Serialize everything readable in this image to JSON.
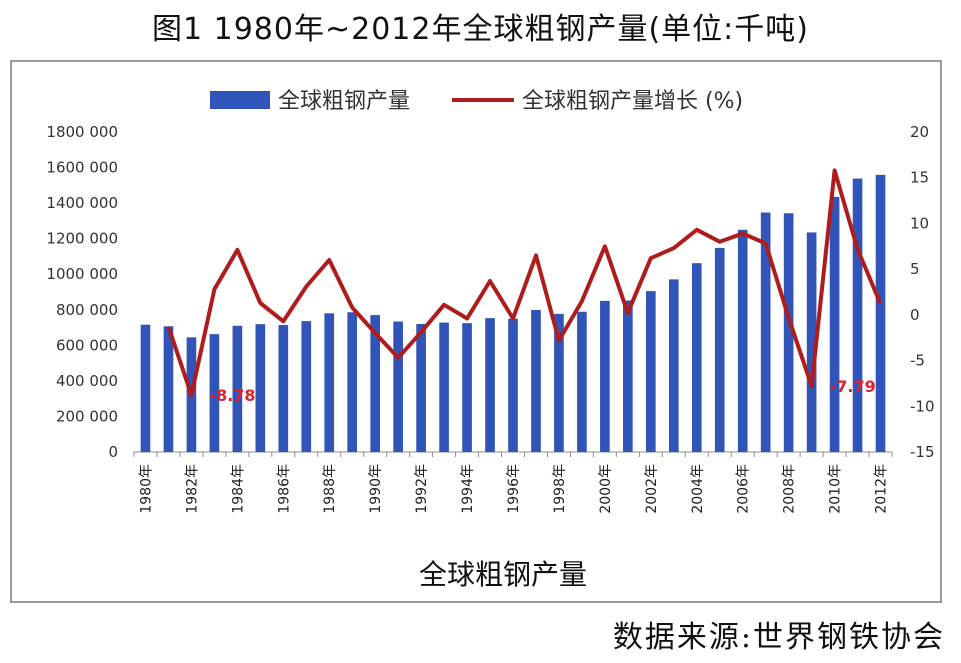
{
  "figure_title": "图1 1980年~2012年全球粗钢产量(单位:千吨)",
  "source": "数据来源:世界钢铁协会",
  "chart_data": {
    "type": "bar",
    "title": "图1 1980年~2012年全球粗钢产量(单位:千吨)",
    "xlabel": "全球粗钢产量",
    "ylabel": "",
    "categories": [
      "1980年",
      "1981年",
      "1982年",
      "1983年",
      "1984年",
      "1985年",
      "1986年",
      "1987年",
      "1988年",
      "1989年",
      "1990年",
      "1991年",
      "1992年",
      "1993年",
      "1994年",
      "1995年",
      "1996年",
      "1997年",
      "1998年",
      "1999年",
      "2000年",
      "2001年",
      "2002年",
      "2003年",
      "2004年",
      "2005年",
      "2006年",
      "2007年",
      "2008年",
      "2009年",
      "2010年",
      "2011年",
      "2012年"
    ],
    "x_tick_labels": [
      "1980年",
      "1982年",
      "1984年",
      "1986年",
      "1988年",
      "1990年",
      "1992年",
      "1994年",
      "1996年",
      "1998年",
      "2000年",
      "2002年",
      "2004年",
      "2006年",
      "2008年",
      "2010年",
      "2012年"
    ],
    "series": [
      {
        "name": "全球粗钢产量",
        "type": "bar",
        "axis": "left",
        "color": "#3054b8",
        "values": [
          716000,
          707000,
          645000,
          663000,
          710000,
          719000,
          714000,
          736000,
          780000,
          786000,
          770000,
          734000,
          720000,
          728000,
          725000,
          753000,
          750000,
          799000,
          777000,
          789000,
          850000,
          852000,
          905000,
          971000,
          1062000,
          1148000,
          1250000,
          1347000,
          1343000,
          1235000,
          1435000,
          1538000,
          1559000
        ]
      },
      {
        "name": "全球粗钢产量增长 (%)",
        "type": "line",
        "axis": "right",
        "color": "#b01c1c",
        "values": [
          null,
          -1.3,
          -8.78,
          2.8,
          7.1,
          1.3,
          -0.7,
          3.1,
          6.0,
          0.8,
          -2.0,
          -4.7,
          -1.9,
          1.1,
          -0.4,
          3.7,
          -0.4,
          6.5,
          -2.8,
          1.5,
          7.5,
          0.2,
          6.2,
          7.3,
          9.3,
          8.0,
          8.9,
          7.8,
          -0.3,
          -7.79,
          15.8,
          7.2,
          1.2
        ]
      }
    ],
    "y_left": {
      "min": 0,
      "max": 1800000,
      "ticks": [
        0,
        200000,
        400000,
        600000,
        800000,
        1000000,
        1200000,
        1400000,
        1600000,
        1800000
      ],
      "tick_labels": [
        "0",
        "200 000",
        "400 000",
        "600 000",
        "800 000",
        "1000 000",
        "1200 000",
        "1400 000",
        "1600 000",
        "1800 000"
      ]
    },
    "y_right": {
      "min": -15,
      "max": 20,
      "ticks": [
        -15,
        -10,
        -5,
        0,
        5,
        10,
        15,
        20
      ],
      "tick_labels": [
        "-15",
        "-10",
        "-5",
        "0",
        "5",
        "10",
        "15",
        "20"
      ]
    },
    "annotations": [
      {
        "text": "-8.78",
        "category": "1982年"
      },
      {
        "text": "-7.79",
        "category": "2009年"
      }
    ],
    "legend": {
      "position": "top",
      "entries": [
        "全球粗钢产量",
        "全球粗钢产量增长 (%)"
      ]
    },
    "grid": false
  }
}
